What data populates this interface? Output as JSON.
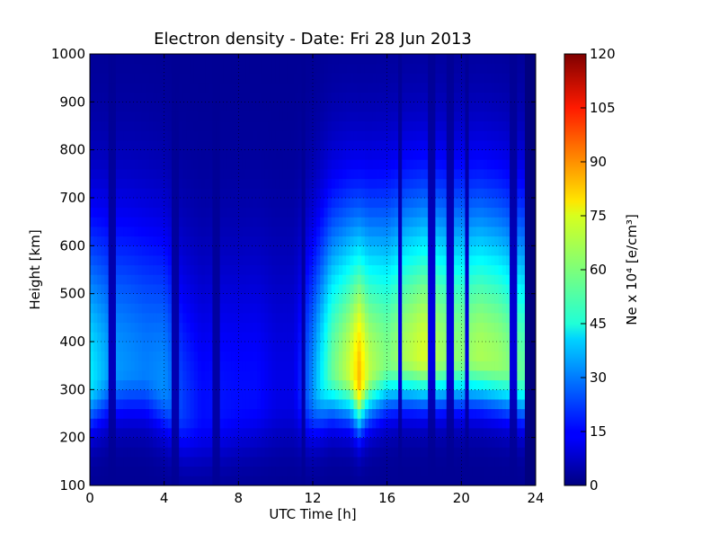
{
  "chart_data": {
    "type": "heatmap",
    "title": "Electron density - Date: Fri 28 Jun 2013",
    "xlabel": "UTC Time [h]",
    "ylabel": "Height [km]",
    "colorbar_label": "Ne x 10⁴ [e/cm³]",
    "colormap": "jet",
    "xlim": [
      0,
      24
    ],
    "ylim": [
      100,
      1000
    ],
    "clim": [
      0,
      120
    ],
    "x_ticks": [
      "0",
      "4",
      "8",
      "12",
      "16",
      "20",
      "24"
    ],
    "y_ticks": [
      "100",
      "200",
      "300",
      "400",
      "500",
      "600",
      "700",
      "800",
      "900",
      "1000"
    ],
    "colorbar_ticks": [
      "0",
      "15",
      "30",
      "45",
      "60",
      "75",
      "90",
      "105",
      "120"
    ],
    "grid": true,
    "data_end_hour": 23.3,
    "column_step_hours": 0.2,
    "profiles": [
      {
        "time": 0.0,
        "peak_height_km": 320,
        "peak_value": 42
      },
      {
        "time": 1.0,
        "peak_height_km": 340,
        "peak_value": 32
      },
      {
        "time": 2.0,
        "peak_height_km": 345,
        "peak_value": 30
      },
      {
        "time": 3.0,
        "peak_height_km": 340,
        "peak_value": 28
      },
      {
        "time": 4.0,
        "peak_height_km": 310,
        "peak_value": 30
      },
      {
        "time": 5.0,
        "peak_height_km": 260,
        "peak_value": 20
      },
      {
        "time": 6.0,
        "peak_height_km": 250,
        "peak_value": 14
      },
      {
        "time": 7.0,
        "peak_height_km": 260,
        "peak_value": 15
      },
      {
        "time": 8.0,
        "peak_height_km": 270,
        "peak_value": 14
      },
      {
        "time": 9.0,
        "peak_height_km": 280,
        "peak_value": 14
      },
      {
        "time": 10.0,
        "peak_height_km": 285,
        "peak_value": 10
      },
      {
        "time": 11.0,
        "peak_height_km": 290,
        "peak_value": 10
      },
      {
        "time": 12.0,
        "peak_height_km": 300,
        "peak_value": 30
      },
      {
        "time": 13.0,
        "peak_height_km": 340,
        "peak_value": 55
      },
      {
        "time": 14.0,
        "peak_height_km": 340,
        "peak_value": 68
      },
      {
        "time": 14.5,
        "peak_height_km": 320,
        "peak_value": 82
      },
      {
        "time": 15.0,
        "peak_height_km": 340,
        "peak_value": 66
      },
      {
        "time": 16.0,
        "peak_height_km": 360,
        "peak_value": 58
      },
      {
        "time": 17.0,
        "peak_height_km": 370,
        "peak_value": 64
      },
      {
        "time": 18.0,
        "peak_height_km": 370,
        "peak_value": 70
      },
      {
        "time": 19.0,
        "peak_height_km": 370,
        "peak_value": 62
      },
      {
        "time": 20.0,
        "peak_height_km": 370,
        "peak_value": 60
      },
      {
        "time": 21.0,
        "peak_height_km": 370,
        "peak_value": 64
      },
      {
        "time": 22.0,
        "peak_height_km": 360,
        "peak_value": 62
      },
      {
        "time": 23.3,
        "peak_height_km": 340,
        "peak_value": 55
      }
    ],
    "dropout_hours": [
      1.2,
      4.6,
      6.8,
      11.5,
      16.7,
      18.4,
      19.4,
      20.3,
      22.8
    ]
  }
}
